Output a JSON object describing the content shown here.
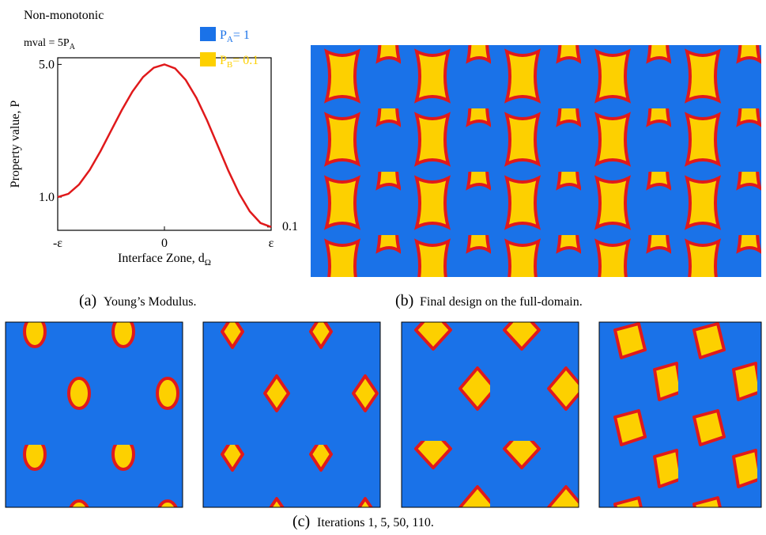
{
  "chart_data": {
    "type": "line",
    "title": "Non-monotonic",
    "subtitle": {
      "text": "mval = 5P",
      "sub": "A"
    },
    "y_label": "Property value, P",
    "x_label": {
      "text": "Interface Zone, d",
      "sub": "Ω"
    },
    "x": [
      -1,
      -0.9,
      -0.8,
      -0.7,
      -0.6,
      -0.5,
      -0.4,
      -0.3,
      -0.2,
      -0.1,
      0,
      0.1,
      0.2,
      0.3,
      0.4,
      0.5,
      0.6,
      0.7,
      0.8,
      0.9,
      1
    ],
    "series": [
      {
        "color": "#e0191b",
        "values": [
          1.0,
          1.1,
          1.38,
          1.82,
          2.38,
          3.0,
          3.62,
          4.18,
          4.62,
          4.9,
          5.0,
          4.88,
          4.53,
          3.99,
          3.31,
          2.55,
          1.79,
          1.11,
          0.57,
          0.22,
          0.1
        ]
      }
    ],
    "xlim": [
      -1,
      1
    ],
    "xticks": [
      {
        "value": -1,
        "label": "-ε"
      },
      0,
      {
        "value": 1,
        "label": "ε"
      }
    ],
    "ylim": [
      0,
      5.2
    ],
    "yticks": [
      {
        "value": 1,
        "label": "1.0"
      },
      {
        "value": 5,
        "label": "5.0"
      }
    ],
    "y2lim": [
      0,
      5.2
    ],
    "y2ticks": [
      0.1
    ],
    "legend": [
      {
        "text": "P",
        "sub": "A",
        "rest": "= 1",
        "color": "#1a72e8"
      },
      {
        "text": "P",
        "sub": "B",
        "rest": "= 0.1",
        "color": "#fdd000"
      }
    ]
  },
  "captions": [
    {
      "label": "(a)",
      "text": "Young’s Modulus."
    },
    {
      "label": "(b)",
      "text": "Final design on the full-domain."
    },
    {
      "label": "(c)",
      "text": "Iterations 1, 5, 50, 110."
    }
  ]
}
